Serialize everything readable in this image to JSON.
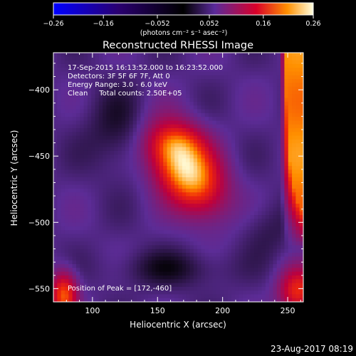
{
  "chart_data": {
    "type": "heatmap",
    "title": "Reconstructed RHESSI Image",
    "xlabel": "Heliocentric X (arcsec)",
    "ylabel": "Heliocentric Y (arcsec)",
    "xlim": [
      70,
      262
    ],
    "ylim": [
      -560,
      -372
    ],
    "x_ticks": [
      100,
      150,
      200,
      250
    ],
    "x_tick_labels": [
      "100",
      "150",
      "200",
      "250"
    ],
    "y_ticks": [
      -400,
      -450,
      -500,
      -550
    ],
    "y_tick_labels": [
      "−400",
      "−450",
      "−500",
      "−550"
    ],
    "colorbar": {
      "range": [
        -0.26,
        0.26
      ],
      "ticks": [
        -0.26,
        -0.16,
        -0.052,
        0.052,
        0.16,
        0.26
      ],
      "tick_labels": [
        "−0.26",
        "−0.16",
        "−0.052",
        "0.052",
        "0.16",
        "0.26"
      ],
      "unit_label": "(photons cm⁻² s⁻¹ asec⁻²)",
      "colors": [
        "#0000ff",
        "#000000",
        "#5a2a9a",
        "#d8002a",
        "#ff9000",
        "#ffffe0"
      ]
    },
    "annotations": [
      "17-Sep-2015 16:13:52.000 to 16:23:52.000",
      "Detectors: 3F 5F 6F 7F, Att 0",
      "Energy Range: 3.0 - 6.0 keV",
      "Clean     Total counts: 2.50E+05"
    ],
    "peak_label": "Position of Peak = [172,-460]",
    "peak": [
      172,
      -460
    ],
    "source": {
      "peak_value": 0.26,
      "background_value": 0.045
    }
  },
  "footer_date": "23-Aug-2017 08:19"
}
